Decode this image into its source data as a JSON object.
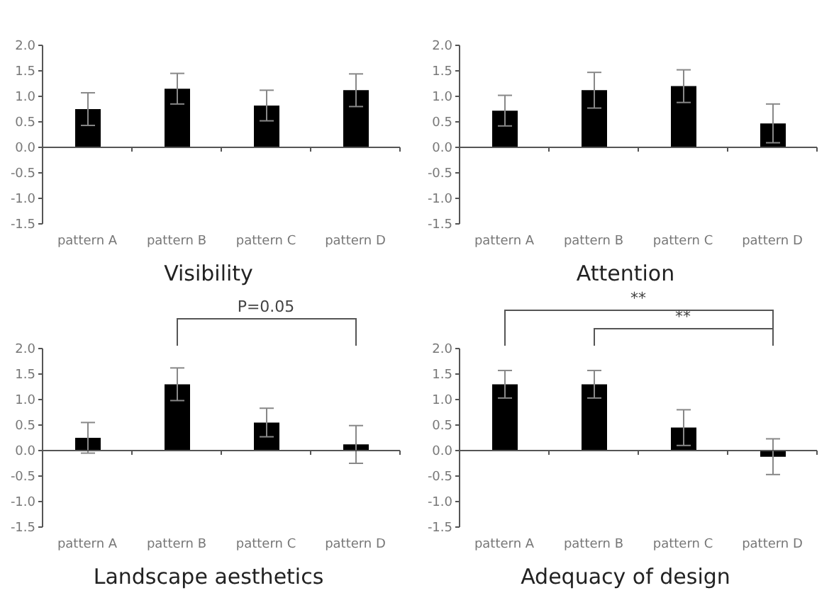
{
  "chart_data": [
    {
      "type": "bar",
      "title": "Visibility",
      "categories": [
        "pattern A",
        "pattern B",
        "pattern C",
        "pattern D"
      ],
      "values": [
        0.75,
        1.15,
        0.82,
        1.12
      ],
      "errors": [
        0.32,
        0.3,
        0.3,
        0.32
      ],
      "color": "#000000",
      "ylim": [
        -1.5,
        2.0
      ],
      "yticks": [
        {
          "value": -1.5,
          "label": "-1.5"
        },
        {
          "value": -1.0,
          "label": "-1.0"
        },
        {
          "value": -0.5,
          "label": "-0.5"
        },
        {
          "value": 0,
          "label": "0.0"
        },
        {
          "value": 0.5,
          "label": "0.5"
        },
        {
          "value": 1.0,
          "label": "1.0"
        },
        {
          "value": 1.5,
          "label": "1.5"
        },
        {
          "value": 2.0,
          "label": "2.0"
        }
      ]
    },
    {
      "type": "bar",
      "title": "Attention",
      "categories": [
        "pattern A",
        "pattern B",
        "pattern C",
        "pattern D"
      ],
      "values": [
        0.72,
        1.12,
        1.2,
        0.47
      ],
      "errors": [
        0.3,
        0.35,
        0.32,
        0.38
      ],
      "color": "#000000",
      "ylim": [
        -1.5,
        2.0
      ],
      "yticks": [
        {
          "value": -1.5,
          "label": "-1.5"
        },
        {
          "value": -1.0,
          "label": "-1.0"
        },
        {
          "value": -0.5,
          "label": "-0.5"
        },
        {
          "value": 0,
          "label": "0.0"
        },
        {
          "value": 0.5,
          "label": "0.5"
        },
        {
          "value": 1.0,
          "label": "1.0"
        },
        {
          "value": 1.5,
          "label": "1.5"
        },
        {
          "value": 2.0,
          "label": "2.0"
        }
      ]
    },
    {
      "type": "bar",
      "title": "Landscape aesthetics",
      "categories": [
        "pattern A",
        "pattern B",
        "pattern C",
        "pattern D"
      ],
      "values": [
        0.25,
        1.3,
        0.55,
        0.12
      ],
      "errors": [
        0.3,
        0.32,
        0.28,
        0.37
      ],
      "color": "#000000",
      "ylim": [
        -1.5,
        2.0
      ],
      "yticks": [
        {
          "value": -1.5,
          "label": "-1.5"
        },
        {
          "value": -1.0,
          "label": "-1.0"
        },
        {
          "value": -0.5,
          "label": "-0.5"
        },
        {
          "value": 0,
          "label": "0.0"
        },
        {
          "value": 0.5,
          "label": "0.5"
        },
        {
          "value": 1.0,
          "label": "1.0"
        },
        {
          "value": 1.5,
          "label": "1.5"
        },
        {
          "value": 2.0,
          "label": "2.0"
        }
      ],
      "annotations": [
        "P=0.05"
      ]
    },
    {
      "type": "bar",
      "title": "Adequacy of design",
      "categories": [
        "pattern A",
        "pattern B",
        "pattern C",
        "pattern D"
      ],
      "values": [
        1.3,
        1.3,
        0.45,
        -0.12
      ],
      "errors": [
        0.27,
        0.27,
        0.35,
        0.35
      ],
      "color": "#000000",
      "ylim": [
        -1.5,
        2.0
      ],
      "yticks": [
        {
          "value": -1.5,
          "label": "-1.5"
        },
        {
          "value": -1.0,
          "label": "-1.0"
        },
        {
          "value": -0.5,
          "label": "-0.5"
        },
        {
          "value": 0,
          "label": "0.0"
        },
        {
          "value": 0.5,
          "label": "0.5"
        },
        {
          "value": 1.0,
          "label": "1.0"
        },
        {
          "value": 1.5,
          "label": "1.5"
        },
        {
          "value": 2.0,
          "label": "2.0"
        }
      ],
      "annotations": [
        "**",
        "**"
      ]
    }
  ]
}
